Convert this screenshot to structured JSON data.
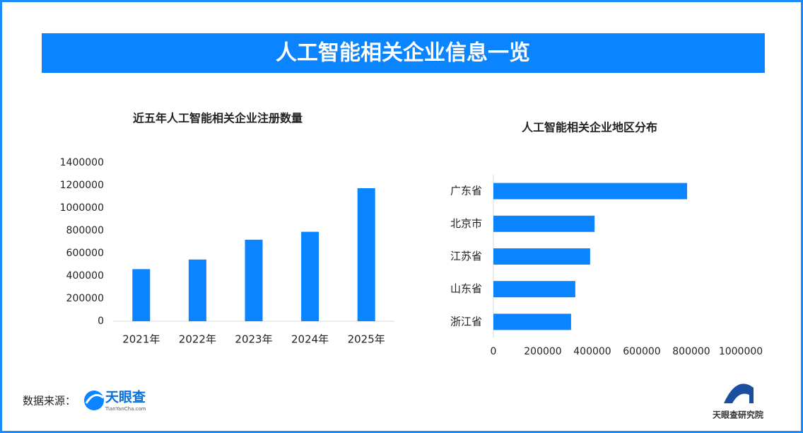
{
  "header": {
    "title": "人工智能相关企业信息一览"
  },
  "chart_data": [
    {
      "type": "bar",
      "title": "近五年人工智能相关企业注册数量",
      "categories": [
        "2021年",
        "2022年",
        "2023年",
        "2024年",
        "2025年"
      ],
      "values": [
        460000,
        545000,
        720000,
        790000,
        1175000
      ],
      "color": "#0a84ff",
      "ylim": [
        0,
        1400000
      ],
      "yticks": [
        0,
        200000,
        400000,
        600000,
        800000,
        1000000,
        1200000,
        1400000
      ]
    },
    {
      "type": "barh",
      "title": "人工智能相关企业地区分布",
      "categories": [
        "广东省",
        "北京市",
        "江苏省",
        "山东省",
        "浙江省"
      ],
      "values": [
        783000,
        409000,
        391000,
        331000,
        314000
      ],
      "color": "#0a84ff",
      "xlim": [
        0,
        1000000
      ],
      "xticks": [
        0,
        200000,
        400000,
        600000,
        800000,
        1000000
      ]
    }
  ],
  "footer": {
    "source_label": "数据来源：",
    "source_brand": "天眼查",
    "source_url": "TianYanCha.com",
    "publisher": "天眼查研究院"
  }
}
